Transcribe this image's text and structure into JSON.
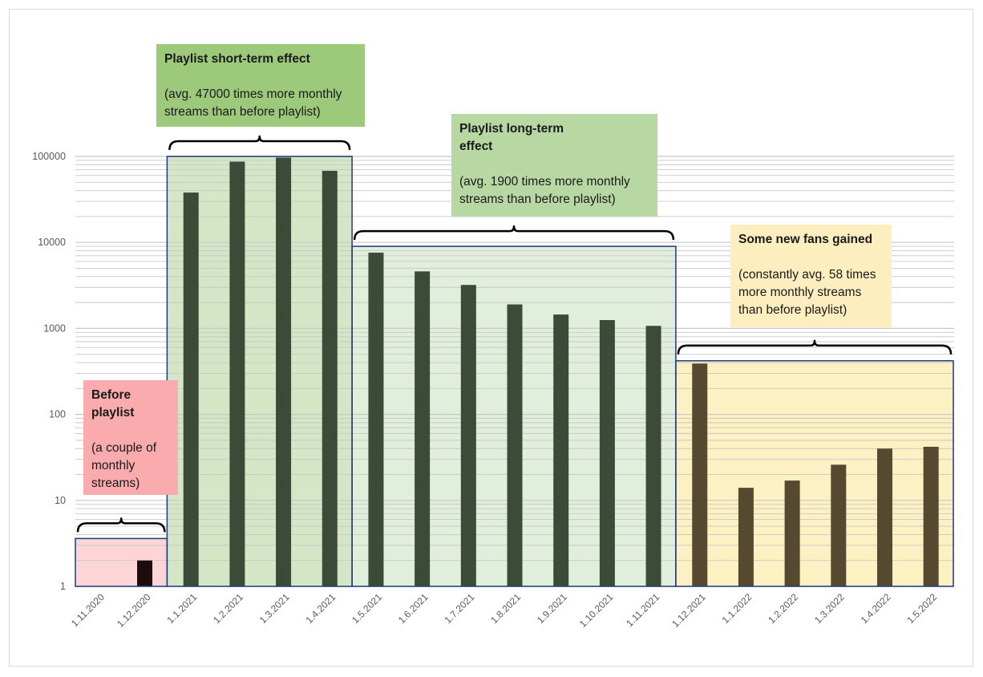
{
  "chart_data": {
    "type": "bar",
    "yscale": "log",
    "ylim": [
      1,
      100000
    ],
    "ytick_labels": [
      "1",
      "10",
      "100",
      "1000",
      "10000",
      "100000"
    ],
    "yticks": [
      1,
      10,
      100,
      1000,
      10000,
      100000
    ],
    "categories": [
      "1.11.2020",
      "1.12.2020",
      "1.1.2021",
      "1.2.2021",
      "1.3.2021",
      "1.4.2021",
      "1.5.2021",
      "1.6.2021",
      "1.7.2021",
      "1.8.2021",
      "1.9.2021",
      "1.10.2021",
      "1.11.2021",
      "1.12.2021",
      "1.1.2022",
      "1.2.2022",
      "1.3.2022",
      "1.4.2022",
      "1.5.2022"
    ],
    "values": [
      null,
      2,
      38000,
      87000,
      97000,
      68000,
      7600,
      4600,
      3200,
      1900,
      1450,
      1250,
      1070,
      390,
      14,
      17,
      26,
      40,
      42
    ],
    "grid": true,
    "regions": [
      {
        "name": "before",
        "from": 0,
        "to": 1,
        "fill": "#fdd5d7",
        "top": 3.6
      },
      {
        "name": "short",
        "from": 2,
        "to": 5,
        "fill": "#d4e6c5",
        "top": 100000
      },
      {
        "name": "long",
        "from": 6,
        "to": 12,
        "fill": "#e1eedb",
        "top": 9000
      },
      {
        "name": "fans",
        "from": 13,
        "to": 18,
        "fill": "#fdf0c3",
        "top": 420
      }
    ]
  },
  "colors": {
    "bar_default": "#3c4a38",
    "bar_before": "#1c0c0c",
    "bar_fans": "#554a2f",
    "region_border": "#1f3a7a",
    "gridline": "#c8c8c8",
    "axis_text": "#595959",
    "note_before": "#f9abad",
    "note_short": "#9dc97b",
    "note_long": "#b8d8a3",
    "note_fans": "#fdeec0"
  },
  "annotations": {
    "before": {
      "head": "Before playlist",
      "body": "(a couple of monthly streams)"
    },
    "short": {
      "head": "Playlist short-term effect",
      "body": "(avg. 47000 times more monthly streams than before playlist)"
    },
    "long": {
      "head": "Playlist long-term effect",
      "body": "(avg. 1900 times more monthly streams than before playlist)"
    },
    "fans": {
      "head": "Some new fans gained",
      "body": "(constantly avg. 58 times more monthly streams than before playlist)"
    }
  }
}
